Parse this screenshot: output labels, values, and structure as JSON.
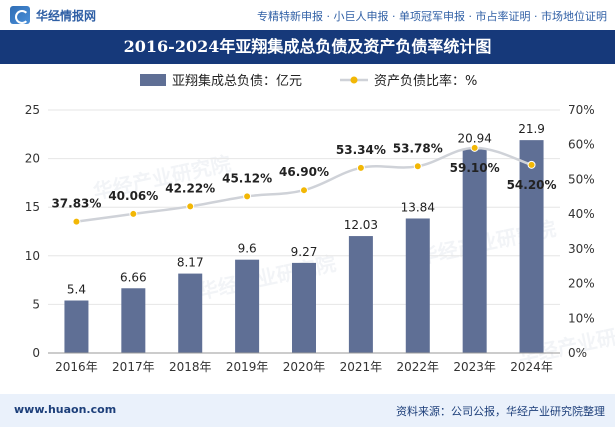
{
  "header": {
    "brand": "华经情报网",
    "links": "专精特新申报 · 小巨人申报 · 单项冠军申报 · 市占率证明 · 市场地位证明"
  },
  "footer": {
    "website": "www.huaon.com",
    "source": "资料来源：公司公报，华经产业研究院整理"
  },
  "watermark": "华经产业研究院",
  "chart_data": {
    "type": "bar",
    "title": "2016-2024年亚翔集成总负债及资产负债率统计图",
    "categories": [
      "2016年",
      "2017年",
      "2018年",
      "2019年",
      "2020年",
      "2021年",
      "2022年",
      "2023年",
      "2024年"
    ],
    "series": [
      {
        "name": "亚翔集成总负债：亿元",
        "type": "bar",
        "axis": "left",
        "values": [
          5.4,
          6.66,
          8.17,
          9.6,
          9.27,
          12.03,
          13.84,
          20.94,
          21.9
        ],
        "labels": [
          "5.4",
          "6.66",
          "8.17",
          "9.6",
          "9.27",
          "12.03",
          "13.84",
          "20.94",
          "21.9"
        ]
      },
      {
        "name": "资产负债比率：%",
        "type": "line",
        "axis": "right",
        "values": [
          37.83,
          40.06,
          42.22,
          45.12,
          46.9,
          53.34,
          53.78,
          59.1,
          54.2
        ],
        "labels": [
          "37.83%",
          "40.06%",
          "42.22%",
          "45.12%",
          "46.90%",
          "53.34%",
          "53.78%",
          "59.10%",
          "54.20%"
        ]
      }
    ],
    "left_axis": {
      "min": 0,
      "max": 25,
      "ticks": [
        "0",
        "5",
        "10",
        "15",
        "20",
        "25"
      ]
    },
    "right_axis": {
      "min": 0,
      "max": 70,
      "ticks": [
        "0%",
        "10%",
        "20%",
        "30%",
        "40%",
        "50%",
        "60%",
        "70%"
      ]
    },
    "grid": true,
    "legend_position": "top",
    "colors": {
      "bar": "#5f6f95",
      "line": "#cfd2d8",
      "marker": "#f2b705",
      "title_bg": "#16397a"
    }
  }
}
